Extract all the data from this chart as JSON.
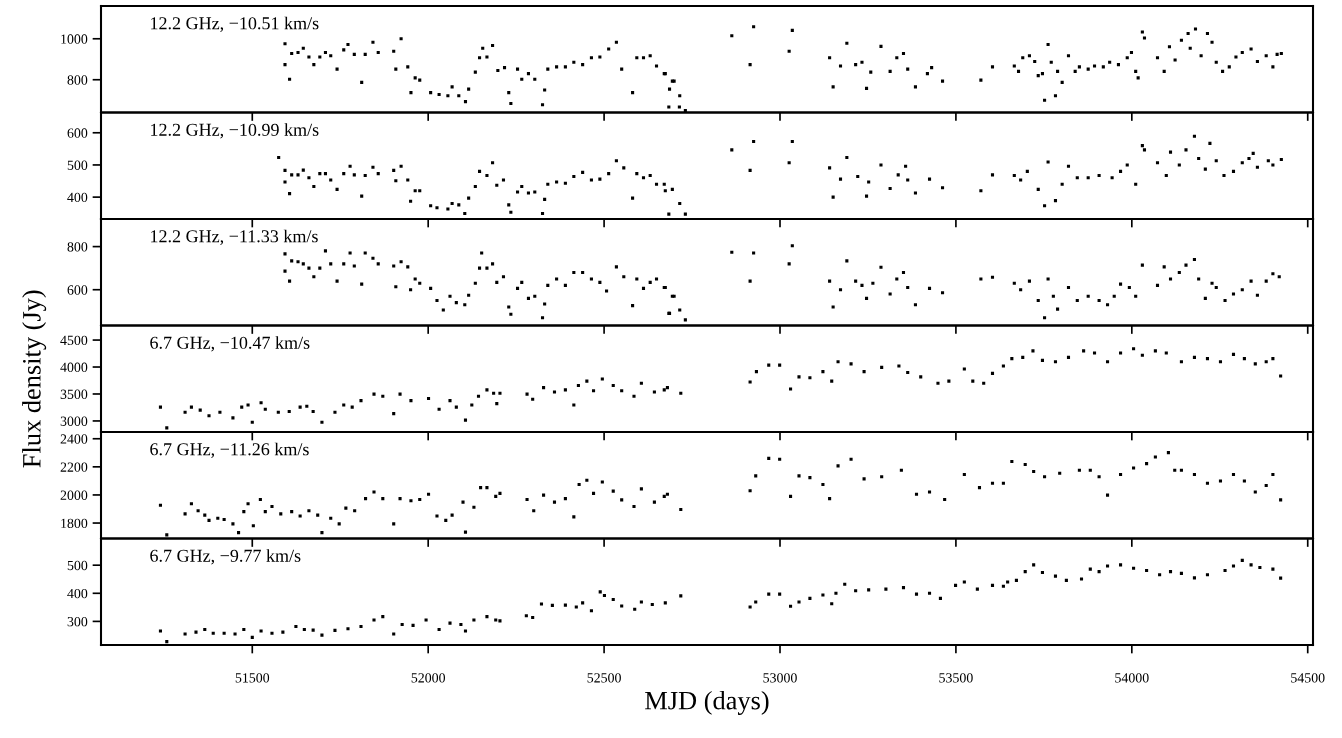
{
  "chart_data": [
    {
      "type": "scatter",
      "marker": "square",
      "color": "#000000",
      "annotations": [
        "12.2 GHz, −10.51 km/s"
      ],
      "xlim": [
        51070,
        54515
      ],
      "xticks": [
        51500,
        52000,
        52500,
        53000,
        53500,
        54000,
        54500
      ],
      "ylim": [
        640,
        1160
      ],
      "yticks": [
        800,
        1000
      ],
      "tick_labels": "y",
      "x": [
        51593,
        51593,
        51606,
        51612,
        51630,
        51645,
        51661,
        51675,
        51692,
        51708,
        51723,
        51741,
        51760,
        51772,
        51790,
        51811,
        51821,
        51843,
        51858,
        51902,
        51908,
        51923,
        51942,
        51951,
        51963,
        51976,
        52007,
        52031,
        52056,
        52068,
        52087,
        52106,
        52115,
        52134,
        52146,
        52155,
        52167,
        52183,
        52198,
        52217,
        52229,
        52235,
        52254,
        52266,
        52285,
        52303,
        52325,
        52331,
        52340,
        52365,
        52390,
        52414,
        52439,
        52464,
        52488,
        52513,
        52535,
        52550,
        52581,
        52593,
        52612,
        52631,
        52649,
        52674,
        52686,
        52699,
        52714,
        52671,
        52694,
        52715,
        52684,
        52731,
        52863,
        52915,
        52925,
        53026,
        53035,
        53141,
        53151,
        53172,
        53190,
        53215,
        53233,
        53246,
        53258,
        53287,
        53313,
        53332,
        53351,
        53363,
        53385,
        53419,
        53431,
        53462,
        53571,
        53604,
        53666,
        53678,
        53690,
        53709,
        53724,
        53734,
        53746,
        53752,
        53762,
        53771,
        53783,
        53789,
        53802,
        53820,
        53839,
        53851,
        53876,
        53894,
        53919,
        53937,
        53962,
        53987,
        53999,
        54011,
        54018,
        54030,
        54036,
        54073,
        54092,
        54107,
        54123,
        54141,
        54160,
        54166,
        54181,
        54197,
        54215,
        54228,
        54240,
        54258,
        54277,
        54296,
        54314,
        54339,
        54357,
        54382,
        54401,
        54413,
        54425
      ],
      "values": [
        976,
        874,
        802,
        928,
        933,
        954,
        911,
        874,
        911,
        933,
        917,
        852,
        946,
        972,
        924,
        787,
        924,
        983,
        933,
        939,
        852,
        1000,
        863,
        737,
        809,
        798,
        737,
        728,
        722,
        765,
        722,
        693,
        754,
        837,
        907,
        954,
        911,
        967,
        845,
        859,
        737,
        684,
        852,
        802,
        830,
        802,
        678,
        750,
        852,
        863,
        863,
        885,
        874,
        907,
        911,
        950,
        983,
        852,
        737,
        907,
        907,
        917,
        867,
        830,
        754,
        793,
        667,
        830,
        793,
        722,
        667,
        650,
        1015,
        874,
        1059,
        939,
        1041,
        907,
        765,
        867,
        978,
        874,
        885,
        758,
        837,
        963,
        841,
        907,
        928,
        852,
        765,
        830,
        859,
        793,
        798,
        863,
        867,
        841,
        907,
        917,
        889,
        820,
        830,
        700,
        972,
        885,
        722,
        841,
        787,
        917,
        841,
        863,
        852,
        867,
        863,
        885,
        874,
        907,
        933,
        841,
        809,
        1033,
        1004,
        907,
        841,
        961,
        896,
        993,
        1026,
        954,
        1048,
        917,
        1026,
        983,
        885,
        841,
        863,
        911,
        933,
        950,
        889,
        917,
        863,
        924,
        928
      ]
    },
    {
      "type": "scatter",
      "marker": "square",
      "color": "#000000",
      "annotations": [
        "12.2 GHz, −10.99 km/s"
      ],
      "xlim": [
        51070,
        54515
      ],
      "xticks": [
        51500,
        52000,
        52500,
        53000,
        53500,
        54000,
        54500
      ],
      "ylim": [
        332,
        663
      ],
      "yticks": [
        400,
        500,
        600
      ],
      "tick_labels": "y",
      "x": [
        51575,
        51593,
        51593,
        51606,
        51612,
        51630,
        51645,
        51661,
        51675,
        51692,
        51708,
        51723,
        51741,
        51760,
        51778,
        51790,
        51811,
        51821,
        51843,
        51858,
        51902,
        51908,
        51923,
        51942,
        51950,
        51963,
        51976,
        52007,
        52025,
        52056,
        52068,
        52087,
        52104,
        52115,
        52134,
        52146,
        52167,
        52183,
        52195,
        52214,
        52229,
        52235,
        52254,
        52266,
        52285,
        52303,
        52325,
        52331,
        52340,
        52365,
        52390,
        52414,
        52439,
        52464,
        52488,
        52513,
        52535,
        52556,
        52581,
        52593,
        52612,
        52631,
        52649,
        52674,
        52671,
        52694,
        52715,
        52684,
        52731,
        52863,
        52915,
        52925,
        53026,
        53035,
        53141,
        53151,
        53172,
        53190,
        53221,
        53252,
        53246,
        53287,
        53313,
        53336,
        53357,
        53363,
        53385,
        53425,
        53462,
        53571,
        53604,
        53666,
        53684,
        53703,
        53734,
        53752,
        53762,
        53783,
        53802,
        53820,
        53845,
        53876,
        53907,
        53944,
        53968,
        53987,
        54011,
        54030,
        54036,
        54073,
        54098,
        54110,
        54135,
        54154,
        54178,
        54190,
        54209,
        54222,
        54240,
        54262,
        54289,
        54314,
        54333,
        54345,
        54357,
        54388,
        54401,
        54425
      ],
      "values": [
        523,
        483,
        447,
        411,
        469,
        469,
        484,
        460,
        433,
        473,
        473,
        453,
        424,
        473,
        496,
        469,
        403,
        467,
        493,
        473,
        483,
        451,
        496,
        453,
        387,
        420,
        420,
        373,
        367,
        363,
        380,
        376,
        349,
        397,
        433,
        480,
        467,
        507,
        437,
        453,
        376,
        353,
        416,
        433,
        413,
        416,
        349,
        393,
        440,
        447,
        443,
        464,
        477,
        453,
        456,
        473,
        513,
        491,
        397,
        473,
        460,
        467,
        440,
        420,
        440,
        424,
        380,
        347,
        347,
        547,
        483,
        573,
        507,
        573,
        491,
        400,
        456,
        523,
        464,
        447,
        403,
        500,
        427,
        469,
        496,
        453,
        413,
        456,
        429,
        420,
        469,
        467,
        453,
        480,
        424,
        373,
        509,
        389,
        440,
        496,
        460,
        460,
        467,
        460,
        480,
        500,
        440,
        560,
        547,
        507,
        467,
        540,
        500,
        547,
        589,
        520,
        487,
        567,
        513,
        467,
        480,
        507,
        520,
        536,
        493,
        513,
        500,
        517
      ]
    },
    {
      "type": "scatter",
      "marker": "square",
      "color": "#000000",
      "annotations": [
        "12.2 GHz, −11.33 km/s"
      ],
      "xlim": [
        51070,
        54515
      ],
      "xticks": [
        51500,
        52000,
        52500,
        53000,
        53500,
        54000,
        54500
      ],
      "ylim": [
        434,
        928
      ],
      "yticks": [
        600,
        800
      ],
      "tick_labels": "y",
      "x": [
        51593,
        51593,
        51606,
        51612,
        51630,
        51645,
        51661,
        51675,
        51692,
        51708,
        51723,
        51741,
        51760,
        51778,
        51790,
        51811,
        51821,
        51843,
        51858,
        51902,
        51908,
        51923,
        51942,
        51950,
        51963,
        51976,
        52007,
        52025,
        52043,
        52062,
        52080,
        52104,
        52115,
        52134,
        52146,
        52152,
        52167,
        52183,
        52195,
        52214,
        52229,
        52235,
        52254,
        52266,
        52285,
        52303,
        52325,
        52331,
        52340,
        52365,
        52390,
        52414,
        52439,
        52464,
        52488,
        52507,
        52535,
        52556,
        52581,
        52593,
        52612,
        52631,
        52649,
        52674,
        52686,
        52699,
        52671,
        52694,
        52715,
        52684,
        52731,
        52863,
        52915,
        52925,
        53026,
        53035,
        53141,
        53151,
        53172,
        53190,
        53215,
        53233,
        53246,
        53264,
        53287,
        53313,
        53332,
        53351,
        53363,
        53385,
        53425,
        53462,
        53571,
        53604,
        53666,
        53684,
        53709,
        53734,
        53752,
        53762,
        53777,
        53789,
        53820,
        53845,
        53876,
        53907,
        53931,
        53950,
        53968,
        53993,
        54011,
        54030,
        54073,
        54092,
        54110,
        54135,
        54154,
        54178,
        54190,
        54209,
        54228,
        54240,
        54265,
        54289,
        54314,
        54339,
        54357,
        54382,
        54401,
        54419
      ],
      "values": [
        766,
        686,
        640,
        734,
        730,
        720,
        700,
        660,
        700,
        780,
        720,
        640,
        720,
        770,
        710,
        626,
        770,
        746,
        720,
        710,
        614,
        730,
        706,
        600,
        650,
        630,
        606,
        550,
        506,
        570,
        540,
        530,
        574,
        630,
        700,
        770,
        700,
        720,
        634,
        660,
        520,
        486,
        606,
        634,
        560,
        570,
        470,
        534,
        620,
        650,
        620,
        680,
        680,
        650,
        634,
        594,
        706,
        660,
        526,
        650,
        606,
        634,
        650,
        610,
        490,
        570,
        610,
        570,
        506,
        490,
        460,
        774,
        640,
        770,
        720,
        804,
        640,
        520,
        600,
        734,
        640,
        620,
        560,
        630,
        704,
        580,
        650,
        680,
        610,
        530,
        606,
        586,
        650,
        658,
        630,
        600,
        640,
        550,
        470,
        650,
        570,
        510,
        610,
        550,
        570,
        550,
        530,
        570,
        626,
        610,
        570,
        714,
        620,
        706,
        650,
        680,
        714,
        740,
        650,
        560,
        630,
        610,
        550,
        580,
        600,
        640,
        574,
        640,
        674,
        660
      ]
    },
    {
      "type": "scatter",
      "marker": "square",
      "color": "#000000",
      "annotations": [
        "6.7 GHz, −10.47 km/s"
      ],
      "ylabel": "Flux density (Jy)",
      "xlim": [
        51070,
        54515
      ],
      "xticks": [
        51500,
        52000,
        52500,
        53000,
        53500,
        54000,
        54500
      ],
      "ylim": [
        2795,
        4770
      ],
      "yticks": [
        3000,
        3500,
        4000,
        4500
      ],
      "tick_labels": "y",
      "x": [
        51239,
        51257,
        51309,
        51327,
        51352,
        51377,
        51408,
        51445,
        51470,
        51488,
        51500,
        51525,
        51537,
        51574,
        51605,
        51636,
        51655,
        51673,
        51698,
        51735,
        51760,
        51784,
        51809,
        51846,
        51871,
        51902,
        51920,
        51951,
        52001,
        52031,
        52062,
        52080,
        52106,
        52124,
        52143,
        52167,
        52186,
        52195,
        52204,
        52281,
        52297,
        52328,
        52359,
        52390,
        52414,
        52427,
        52451,
        52470,
        52495,
        52526,
        52550,
        52585,
        52606,
        52643,
        52680,
        52671,
        52718,
        52915,
        52933,
        52968,
        52999,
        53030,
        53054,
        53085,
        53122,
        53147,
        53165,
        53202,
        53239,
        53289,
        53338,
        53363,
        53400,
        53449,
        53480,
        53524,
        53548,
        53579,
        53604,
        53635,
        53659,
        53690,
        53719,
        53746,
        53783,
        53820,
        53863,
        53894,
        53931,
        53968,
        54005,
        54030,
        54067,
        54098,
        54141,
        54178,
        54215,
        54252,
        54289,
        54320,
        54351,
        54382,
        54401,
        54423
      ],
      "values": [
        3257,
        2872,
        3160,
        3257,
        3200,
        3096,
        3160,
        3056,
        3257,
        3297,
        2976,
        3337,
        3217,
        3160,
        3176,
        3257,
        3273,
        3176,
        2976,
        3160,
        3297,
        3257,
        3377,
        3497,
        3457,
        3136,
        3497,
        3377,
        3417,
        3217,
        3377,
        3257,
        3016,
        3297,
        3457,
        3577,
        3513,
        3321,
        3513,
        3497,
        3401,
        3618,
        3537,
        3577,
        3297,
        3658,
        3738,
        3561,
        3778,
        3658,
        3561,
        3457,
        3698,
        3537,
        3618,
        3577,
        3513,
        3722,
        3914,
        4035,
        4035,
        3593,
        3818,
        3802,
        3914,
        3738,
        4099,
        4059,
        3914,
        3994,
        4019,
        3898,
        3818,
        3698,
        3738,
        3962,
        3738,
        3698,
        3882,
        4019,
        4155,
        4179,
        4300,
        4123,
        4099,
        4179,
        4300,
        4259,
        4099,
        4259,
        4339,
        4219,
        4300,
        4259,
        4099,
        4179,
        4155,
        4099,
        4235,
        4155,
        4059,
        4099,
        4155,
        3834
      ]
    },
    {
      "type": "scatter",
      "marker": "square",
      "color": "#000000",
      "annotations": [
        "6.7 GHz, −11.26 km/s"
      ],
      "xlim": [
        51070,
        54515
      ],
      "xticks": [
        51500,
        52000,
        52500,
        53000,
        53500,
        54000,
        54500
      ],
      "ylim": [
        1690,
        2448
      ],
      "yticks": [
        1800,
        2000,
        2200,
        2400
      ],
      "tick_labels": "y",
      "x": [
        51239,
        51257,
        51309,
        51327,
        51346,
        51365,
        51377,
        51402,
        51420,
        51445,
        51461,
        51476,
        51488,
        51503,
        51523,
        51537,
        51556,
        51581,
        51612,
        51636,
        51661,
        51686,
        51698,
        51723,
        51747,
        51766,
        51791,
        51822,
        51846,
        51871,
        51902,
        51920,
        51951,
        51976,
        52001,
        52025,
        52050,
        52068,
        52099,
        52106,
        52130,
        52149,
        52167,
        52192,
        52204,
        52281,
        52300,
        52328,
        52359,
        52390,
        52414,
        52429,
        52451,
        52470,
        52495,
        52526,
        52550,
        52585,
        52606,
        52643,
        52680,
        52671,
        52718,
        52915,
        52931,
        52968,
        52999,
        53030,
        53054,
        53085,
        53122,
        53141,
        53165,
        53202,
        53239,
        53289,
        53345,
        53388,
        53425,
        53468,
        53524,
        53567,
        53604,
        53635,
        53659,
        53697,
        53721,
        53752,
        53795,
        53851,
        53882,
        53907,
        53931,
        53968,
        54005,
        54042,
        54067,
        54104,
        54122,
        54141,
        54178,
        54215,
        54252,
        54289,
        54320,
        54351,
        54382,
        54401,
        54423
      ],
      "values": [
        1927,
        1716,
        1865,
        1937,
        1887,
        1856,
        1819,
        1834,
        1825,
        1794,
        1732,
        1881,
        1937,
        1781,
        1968,
        1881,
        1918,
        1865,
        1881,
        1850,
        1887,
        1856,
        1732,
        1834,
        1794,
        1906,
        1887,
        1974,
        2021,
        1974,
        1794,
        1974,
        1959,
        1968,
        2005,
        1850,
        1819,
        1856,
        1949,
        1735,
        1912,
        2052,
        2052,
        1990,
        2011,
        1968,
        1887,
        1999,
        1949,
        1974,
        1844,
        2074,
        2105,
        2011,
        2092,
        2027,
        1965,
        1918,
        2043,
        1949,
        2005,
        1990,
        1896,
        2030,
        2136,
        2260,
        2254,
        1990,
        2136,
        2123,
        2074,
        1974,
        2207,
        2254,
        2114,
        2130,
        2176,
        2005,
        2021,
        1968,
        2145,
        2052,
        2083,
        2083,
        2238,
        2217,
        2167,
        2130,
        2154,
        2176,
        2176,
        2130,
        1999,
        2145,
        2192,
        2223,
        2270,
        2301,
        2176,
        2176,
        2145,
        2083,
        2099,
        2145,
        2099,
        2021,
        2067,
        2145,
        1965
      ]
    },
    {
      "type": "scatter",
      "marker": "square",
      "color": "#000000",
      "annotations": [
        "6.7 GHz, −9.77 km/s"
      ],
      "xlabel": "MJD (days)",
      "xlim": [
        51070,
        54515
      ],
      "xticks": [
        51500,
        52000,
        52500,
        53000,
        53500,
        54000,
        54500
      ],
      "ylim": [
        216,
        595
      ],
      "yticks": [
        300,
        400,
        500
      ],
      "x": [
        51239,
        51257,
        51309,
        51340,
        51365,
        51389,
        51420,
        51451,
        51476,
        51500,
        51525,
        51556,
        51587,
        51624,
        51648,
        51673,
        51698,
        51735,
        51772,
        51809,
        51846,
        51871,
        51902,
        51926,
        51957,
        51994,
        52031,
        52062,
        52093,
        52106,
        52130,
        52167,
        52192,
        52204,
        52279,
        52297,
        52322,
        52353,
        52390,
        52421,
        52439,
        52464,
        52489,
        52501,
        52526,
        52550,
        52587,
        52606,
        52637,
        52674,
        52718,
        52915,
        52931,
        52968,
        52999,
        53030,
        53054,
        53085,
        53122,
        53147,
        53159,
        53184,
        53215,
        53252,
        53301,
        53351,
        53388,
        53425,
        53456,
        53499,
        53524,
        53561,
        53604,
        53635,
        53647,
        53672,
        53697,
        53721,
        53746,
        53783,
        53814,
        53857,
        53882,
        53907,
        53931,
        53968,
        54005,
        54042,
        54079,
        54110,
        54141,
        54178,
        54215,
        54265,
        54289,
        54314,
        54339,
        54364,
        54401,
        54423
      ],
      "values": [
        266,
        228,
        255,
        262,
        271,
        258,
        258,
        255,
        271,
        243,
        266,
        258,
        262,
        282,
        271,
        269,
        251,
        268,
        274,
        282,
        305,
        317,
        255,
        289,
        286,
        305,
        271,
        294,
        289,
        266,
        305,
        317,
        305,
        302,
        320,
        314,
        362,
        357,
        358,
        351,
        366,
        338,
        405,
        392,
        378,
        355,
        343,
        369,
        360,
        366,
        391,
        351,
        369,
        397,
        397,
        354,
        369,
        382,
        394,
        363,
        400,
        432,
        409,
        412,
        415,
        420,
        397,
        400,
        382,
        428,
        440,
        415,
        428,
        425,
        440,
        446,
        477,
        501,
        474,
        461,
        446,
        451,
        486,
        477,
        497,
        501,
        489,
        481,
        466,
        477,
        471,
        455,
        466,
        481,
        497,
        517,
        501,
        492,
        486,
        454
      ]
    }
  ]
}
